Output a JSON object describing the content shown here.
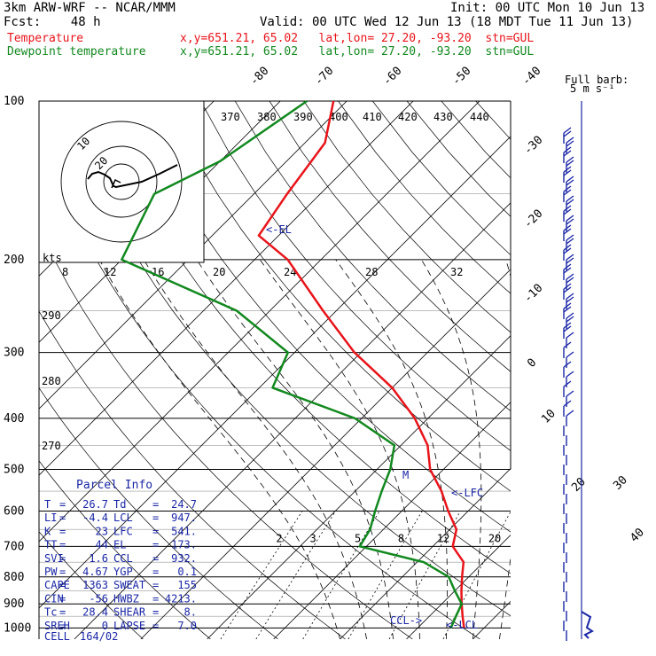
{
  "header": {
    "line1_left": "3km ARW-WRF -- NCAR/MMM",
    "line1_right": "Init: 00 UTC Mon 10 Jun 13",
    "line2_left": "Fcst:    48 h",
    "line2_right": "Valid: 00 UTC Wed 12 Jun 13 (18 MDT Tue 11 Jun 13)",
    "temp_label": "Temperature",
    "temp_info": "x,y=651.21, 65.02   lat,lon= 27.20, -93.20  stn=GUL",
    "dew_label": "Dewpoint temperature",
    "dew_info": "x,y=651.21, 65.02   lat,lon= 27.20, -93.20  stn=GUL"
  },
  "chart_data": {
    "type": "line",
    "title": "",
    "xlabel": "",
    "ylabel": "",
    "pressure_axis": [
      "100",
      "200",
      "300",
      "400",
      "500",
      "600",
      "700",
      "800",
      "900",
      "1000"
    ],
    "pressure_levels": [
      100,
      200,
      300,
      400,
      500,
      600,
      700,
      800,
      900,
      1000
    ],
    "temp_range_at_1000": [
      -37,
      34
    ],
    "temperature_ticks": [
      "-80",
      "-70",
      "-60",
      "-50",
      "-40",
      "-30",
      "-20",
      "-10",
      "0",
      "10",
      "20",
      "30",
      "40"
    ],
    "theta_ticks": [
      "370",
      "380",
      "390",
      "400",
      "410",
      "420",
      "430",
      "440"
    ],
    "theta_side_labels": [
      "290",
      "280",
      "270"
    ],
    "mixing_ratio_labels": [
      "2",
      "3",
      "5",
      "8",
      "12",
      "20"
    ],
    "series": [
      {
        "name": "Temperature",
        "color": "#e8141a",
        "points": [
          [
            100,
            -72
          ],
          [
            120,
            -67
          ],
          [
            150,
            -65
          ],
          [
            180,
            -63
          ],
          [
            200,
            -55
          ],
          [
            250,
            -42
          ],
          [
            300,
            -31
          ],
          [
            350,
            -20
          ],
          [
            400,
            -12
          ],
          [
            450,
            -6
          ],
          [
            500,
            -2
          ],
          [
            550,
            3
          ],
          [
            600,
            7
          ],
          [
            650,
            11
          ],
          [
            700,
            13
          ],
          [
            750,
            17
          ],
          [
            800,
            19
          ],
          [
            850,
            21
          ],
          [
            900,
            23
          ],
          [
            950,
            25
          ],
          [
            1000,
            27
          ]
        ]
      },
      {
        "name": "Dewpoint temperature",
        "color": "#12891f",
        "points": [
          [
            100,
            -76
          ],
          [
            130,
            -80
          ],
          [
            150,
            -85
          ],
          [
            200,
            -80
          ],
          [
            250,
            -55
          ],
          [
            300,
            -41
          ],
          [
            350,
            -38
          ],
          [
            400,
            -21
          ],
          [
            450,
            -11
          ],
          [
            500,
            -8
          ],
          [
            550,
            -6
          ],
          [
            600,
            -4
          ],
          [
            650,
            -2
          ],
          [
            700,
            -1
          ],
          [
            750,
            11
          ],
          [
            800,
            17
          ],
          [
            850,
            20
          ],
          [
            900,
            23
          ],
          [
            950,
            24
          ],
          [
            1000,
            25
          ]
        ]
      }
    ],
    "annotations": [
      "<-EL",
      "<-LFC",
      "CCL->",
      "<-LCL",
      "M"
    ],
    "hodograph": {
      "unit_label": "kts",
      "ring_labels": [
        "8",
        "12",
        "16",
        "20",
        "24",
        "28",
        "32"
      ],
      "inner_labels": [
        "20",
        "10"
      ]
    },
    "wind_barbs": {
      "legend_title": "Full barb:",
      "legend_value": "5 m s⁻¹"
    }
  },
  "parcel_info": {
    "title": "Parcel Info",
    "rows": [
      {
        "k1": "T",
        "v1": "26.7",
        "k2": "Td",
        "v2": "24.7"
      },
      {
        "k1": "LI",
        "v1": "-4.4",
        "k2": "LCL",
        "v2": "947."
      },
      {
        "k1": "K",
        "v1": "23",
        "k2": "LFC",
        "v2": "541."
      },
      {
        "k1": "TT",
        "v1": "44",
        "k2": "EL",
        "v2": "173."
      },
      {
        "k1": "SVI",
        "v1": "1.6",
        "k2": "CCL",
        "v2": "932."
      },
      {
        "k1": "PW",
        "v1": "4.67",
        "k2": "YGP",
        "v2": "0.1"
      },
      {
        "k1": "CAPE",
        "v1": "1363",
        "k2": "SWEAT",
        "v2": "155"
      },
      {
        "k1": "CIN",
        "v1": "-56",
        "k2": "HWBZ",
        "v2": "4213."
      },
      {
        "k1": "Tc",
        "v1": "28.4",
        "k2": "SHEAR",
        "v2": "8."
      },
      {
        "k1": "SREH",
        "v1": "0",
        "k2": "LAPSE",
        "v2": "7.0"
      }
    ],
    "cell_label": "CELL",
    "cell_value": "164/02"
  }
}
